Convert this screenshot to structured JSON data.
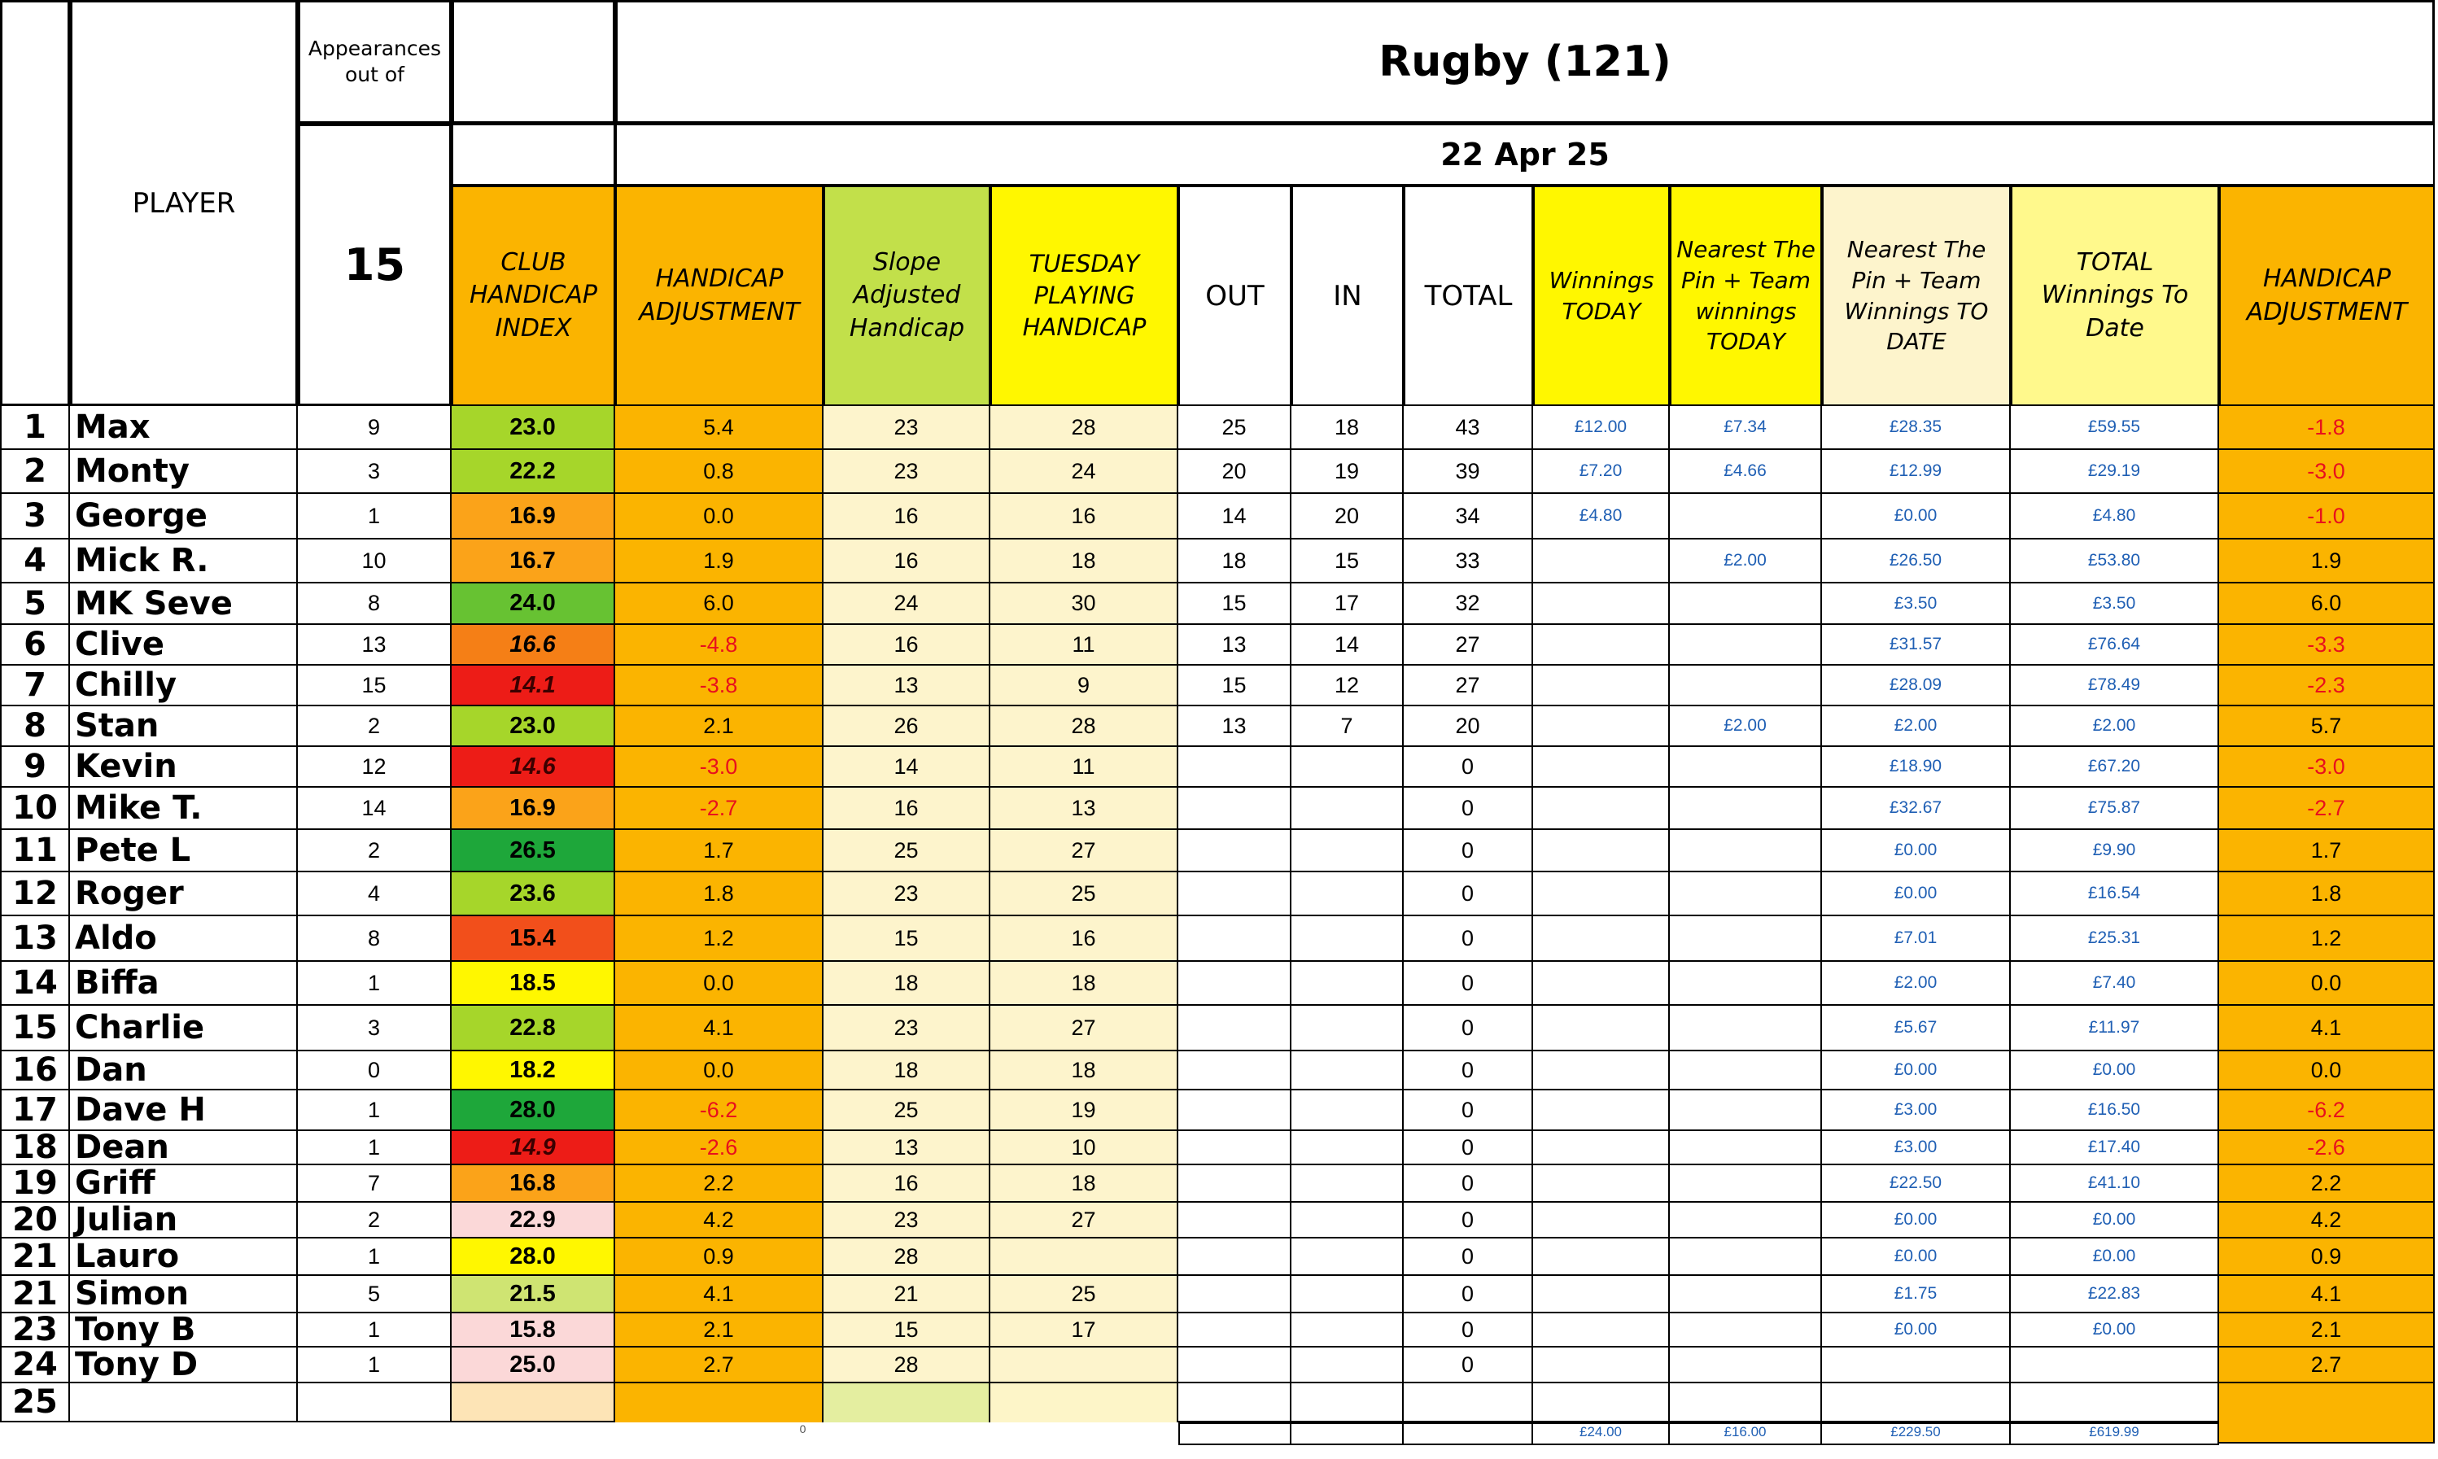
{
  "title": "Rugby (121)",
  "date": "22 Apr 25",
  "appearances_label": "Appearances out of",
  "appearances_total": "15",
  "headers": {
    "player": "PLAYER",
    "club_handicap_index": "CLUB HANDICAP INDEX",
    "handicap_adjustment": "HANDICAP ADJUSTMENT",
    "slope_adjusted": "Slope Adjusted Handicap",
    "tuesday_playing": "TUESDAY PLAYING HANDICAP",
    "out": "OUT",
    "in": "IN",
    "total": "TOTAL",
    "winnings_today": "Winnings TODAY",
    "ntp_today": "Nearest The Pin + Team winnings TODAY",
    "ntp_to_date": "Nearest The Pin + Team Winnings TO DATE",
    "total_winnings": "TOTAL Winnings To Date",
    "handicap_adjustment_2": "HANDICAP ADJUSTMENT"
  },
  "colors": {
    "dark_green": "#1ea73a",
    "green": "#67c232",
    "yellow_green": "#a6d62a",
    "light_green": "#cfe472",
    "yellow": "#fff700",
    "orange": "#fba319",
    "dark_orange": "#f57f16",
    "red_orange": "#f24f1b",
    "red": "#ed1c17",
    "pink": "#fbd8d8",
    "negative_text": "#e8101d",
    "money_text": "#1f5fb4"
  },
  "rows": [
    {
      "no": "1",
      "name": "Max",
      "apps": "9",
      "index": "23.0",
      "index_color": "yellow_green",
      "adj": "5.4",
      "slope": "23",
      "playing": "28",
      "out": "25",
      "in": "18",
      "total": "43",
      "win_today": "£12.00",
      "ntp_today": "£7.34",
      "ntp_to_date": "£28.35",
      "total_win": "£59.55",
      "adj2": "-1.8"
    },
    {
      "no": "2",
      "name": "Monty",
      "apps": "3",
      "index": "22.2",
      "index_color": "yellow_green",
      "adj": "0.8",
      "slope": "23",
      "playing": "24",
      "out": "20",
      "in": "19",
      "total": "39",
      "win_today": "£7.20",
      "ntp_today": "£4.66",
      "ntp_to_date": "£12.99",
      "total_win": "£29.19",
      "adj2": "-3.0"
    },
    {
      "no": "3",
      "name": "George",
      "apps": "1",
      "index": "16.9",
      "index_color": "orange",
      "adj": "0.0",
      "slope": "16",
      "playing": "16",
      "out": "14",
      "in": "20",
      "total": "34",
      "win_today": "£4.80",
      "ntp_today": "",
      "ntp_to_date": "£0.00",
      "total_win": "£4.80",
      "adj2": "-1.0"
    },
    {
      "no": "4",
      "name": "Mick R.",
      "apps": "10",
      "index": "16.7",
      "index_color": "orange",
      "adj": "1.9",
      "slope": "16",
      "playing": "18",
      "out": "18",
      "in": "15",
      "total": "33",
      "win_today": "",
      "ntp_today": "£2.00",
      "ntp_to_date": "£26.50",
      "total_win": "£53.80",
      "adj2": "1.9"
    },
    {
      "no": "5",
      "name": "MK Seve",
      "apps": "8",
      "index": "24.0",
      "index_color": "green",
      "adj": "6.0",
      "slope": "24",
      "playing": "30",
      "out": "15",
      "in": "17",
      "total": "32",
      "win_today": "",
      "ntp_today": "",
      "ntp_to_date": "£3.50",
      "total_win": "£3.50",
      "adj2": "6.0"
    },
    {
      "no": "6",
      "name": "Clive",
      "apps": "13",
      "index": "16.6",
      "index_color": "dark_orange",
      "adj": "-4.8",
      "slope": "16",
      "playing": "11",
      "out": "13",
      "in": "14",
      "total": "27",
      "win_today": "",
      "ntp_today": "",
      "ntp_to_date": "£31.57",
      "total_win": "£76.64",
      "adj2": "-3.3"
    },
    {
      "no": "7",
      "name": "Chilly",
      "apps": "15",
      "index": "14.1",
      "index_color": "red",
      "adj": "-3.8",
      "slope": "13",
      "playing": "9",
      "out": "15",
      "in": "12",
      "total": "27",
      "win_today": "",
      "ntp_today": "",
      "ntp_to_date": "£28.09",
      "total_win": "£78.49",
      "adj2": "-2.3"
    },
    {
      "no": "8",
      "name": "Stan",
      "apps": "2",
      "index": "23.0",
      "index_color": "yellow_green",
      "adj": "2.1",
      "slope": "26",
      "playing": "28",
      "out": "13",
      "in": "7",
      "total": "20",
      "win_today": "",
      "ntp_today": "£2.00",
      "ntp_to_date": "£2.00",
      "total_win": "£2.00",
      "adj2": "5.7"
    },
    {
      "no": "9",
      "name": "Kevin",
      "apps": "12",
      "index": "14.6",
      "index_color": "red",
      "adj": "-3.0",
      "slope": "14",
      "playing": "11",
      "out": "",
      "in": "",
      "total": "0",
      "win_today": "",
      "ntp_today": "",
      "ntp_to_date": "£18.90",
      "total_win": "£67.20",
      "adj2": "-3.0"
    },
    {
      "no": "10",
      "name": "Mike T.",
      "apps": "14",
      "index": "16.9",
      "index_color": "orange",
      "adj": "-2.7",
      "slope": "16",
      "playing": "13",
      "out": "",
      "in": "",
      "total": "0",
      "win_today": "",
      "ntp_today": "",
      "ntp_to_date": "£32.67",
      "total_win": "£75.87",
      "adj2": "-2.7"
    },
    {
      "no": "11",
      "name": "Pete L",
      "apps": "2",
      "index": "26.5",
      "index_color": "dark_green",
      "adj": "1.7",
      "slope": "25",
      "playing": "27",
      "out": "",
      "in": "",
      "total": "0",
      "win_today": "",
      "ntp_today": "",
      "ntp_to_date": "£0.00",
      "total_win": "£9.90",
      "adj2": "1.7"
    },
    {
      "no": "12",
      "name": "Roger",
      "apps": "4",
      "index": "23.6",
      "index_color": "yellow_green",
      "adj": "1.8",
      "slope": "23",
      "playing": "25",
      "out": "",
      "in": "",
      "total": "0",
      "win_today": "",
      "ntp_today": "",
      "ntp_to_date": "£0.00",
      "total_win": "£16.54",
      "adj2": "1.8"
    },
    {
      "no": "13",
      "name": "Aldo",
      "apps": "8",
      "index": "15.4",
      "index_color": "red_orange",
      "adj": "1.2",
      "slope": "15",
      "playing": "16",
      "out": "",
      "in": "",
      "total": "0",
      "win_today": "",
      "ntp_today": "",
      "ntp_to_date": "£7.01",
      "total_win": "£25.31",
      "adj2": "1.2"
    },
    {
      "no": "14",
      "name": "Biffa",
      "apps": "1",
      "index": "18.5",
      "index_color": "yellow",
      "adj": "0.0",
      "slope": "18",
      "playing": "18",
      "out": "",
      "in": "",
      "total": "0",
      "win_today": "",
      "ntp_today": "",
      "ntp_to_date": "£2.00",
      "total_win": "£7.40",
      "adj2": "0.0"
    },
    {
      "no": "15",
      "name": "Charlie",
      "apps": "3",
      "index": "22.8",
      "index_color": "yellow_green",
      "adj": "4.1",
      "slope": "23",
      "playing": "27",
      "out": "",
      "in": "",
      "total": "0",
      "win_today": "",
      "ntp_today": "",
      "ntp_to_date": "£5.67",
      "total_win": "£11.97",
      "adj2": "4.1"
    },
    {
      "no": "16",
      "name": "Dan",
      "apps": "0",
      "index": "18.2",
      "index_color": "yellow",
      "adj": "0.0",
      "slope": "18",
      "playing": "18",
      "out": "",
      "in": "",
      "total": "0",
      "win_today": "",
      "ntp_today": "",
      "ntp_to_date": "£0.00",
      "total_win": "£0.00",
      "adj2": "0.0"
    },
    {
      "no": "17",
      "name": "Dave H",
      "apps": "1",
      "index": "28.0",
      "index_color": "dark_green",
      "adj": "-6.2",
      "slope": "25",
      "playing": "19",
      "out": "",
      "in": "",
      "total": "0",
      "win_today": "",
      "ntp_today": "",
      "ntp_to_date": "£3.00",
      "total_win": "£16.50",
      "adj2": "-6.2"
    },
    {
      "no": "18",
      "name": "Dean",
      "apps": "1",
      "index": "14.9",
      "index_color": "red",
      "adj": "-2.6",
      "slope": "13",
      "playing": "10",
      "out": "",
      "in": "",
      "total": "0",
      "win_today": "",
      "ntp_today": "",
      "ntp_to_date": "£3.00",
      "total_win": "£17.40",
      "adj2": "-2.6"
    },
    {
      "no": "19",
      "name": "Griff",
      "apps": "7",
      "index": "16.8",
      "index_color": "orange",
      "adj": "2.2",
      "slope": "16",
      "playing": "18",
      "out": "",
      "in": "",
      "total": "0",
      "win_today": "",
      "ntp_today": "",
      "ntp_to_date": "£22.50",
      "total_win": "£41.10",
      "adj2": "2.2"
    },
    {
      "no": "20",
      "name": "Julian",
      "apps": "2",
      "index": "22.9",
      "index_color": "pink",
      "adj": "4.2",
      "slope": "23",
      "playing": "27",
      "out": "",
      "in": "",
      "total": "0",
      "win_today": "",
      "ntp_today": "",
      "ntp_to_date": "£0.00",
      "total_win": "£0.00",
      "adj2": "4.2"
    },
    {
      "no": "21",
      "name": "Lauro",
      "apps": "1",
      "index": "28.0",
      "index_color": "yellow",
      "adj": "0.9",
      "slope": "28",
      "playing": "",
      "out": "",
      "in": "",
      "total": "0",
      "win_today": "",
      "ntp_today": "",
      "ntp_to_date": "£0.00",
      "total_win": "£0.00",
      "adj2": "0.9"
    },
    {
      "no": "21",
      "name": "Simon",
      "apps": "5",
      "index": "21.5",
      "index_color": "light_green",
      "adj": "4.1",
      "slope": "21",
      "playing": "25",
      "out": "",
      "in": "",
      "total": "0",
      "win_today": "",
      "ntp_today": "",
      "ntp_to_date": "£1.75",
      "total_win": "£22.83",
      "adj2": "4.1"
    },
    {
      "no": "23",
      "name": "Tony B",
      "apps": "1",
      "index": "15.8",
      "index_color": "pink",
      "adj": "2.1",
      "slope": "15",
      "playing": "17",
      "out": "",
      "in": "",
      "total": "0",
      "win_today": "",
      "ntp_today": "",
      "ntp_to_date": "£0.00",
      "total_win": "£0.00",
      "adj2": "2.1"
    },
    {
      "no": "24",
      "name": "Tony D",
      "apps": "1",
      "index": "25.0",
      "index_color": "pink",
      "adj": "2.7",
      "slope": "28",
      "playing": "",
      "out": "",
      "in": "",
      "total": "0",
      "win_today": "",
      "ntp_today": "",
      "ntp_to_date": "",
      "total_win": "",
      "adj2": "2.7"
    },
    {
      "no": "25",
      "name": "",
      "apps": "",
      "index": "",
      "index_color": "none",
      "adj": "",
      "slope": "",
      "playing": "",
      "out": "",
      "in": "",
      "total": "",
      "win_today": "",
      "ntp_today": "",
      "ntp_to_date": "",
      "total_win": "",
      "adj2": ""
    }
  ],
  "totals": {
    "adj_total": "0",
    "win_today": "£24.00",
    "ntp_today": "£16.00",
    "ntp_to_date": "£229.50",
    "total_win": "£619.99"
  }
}
